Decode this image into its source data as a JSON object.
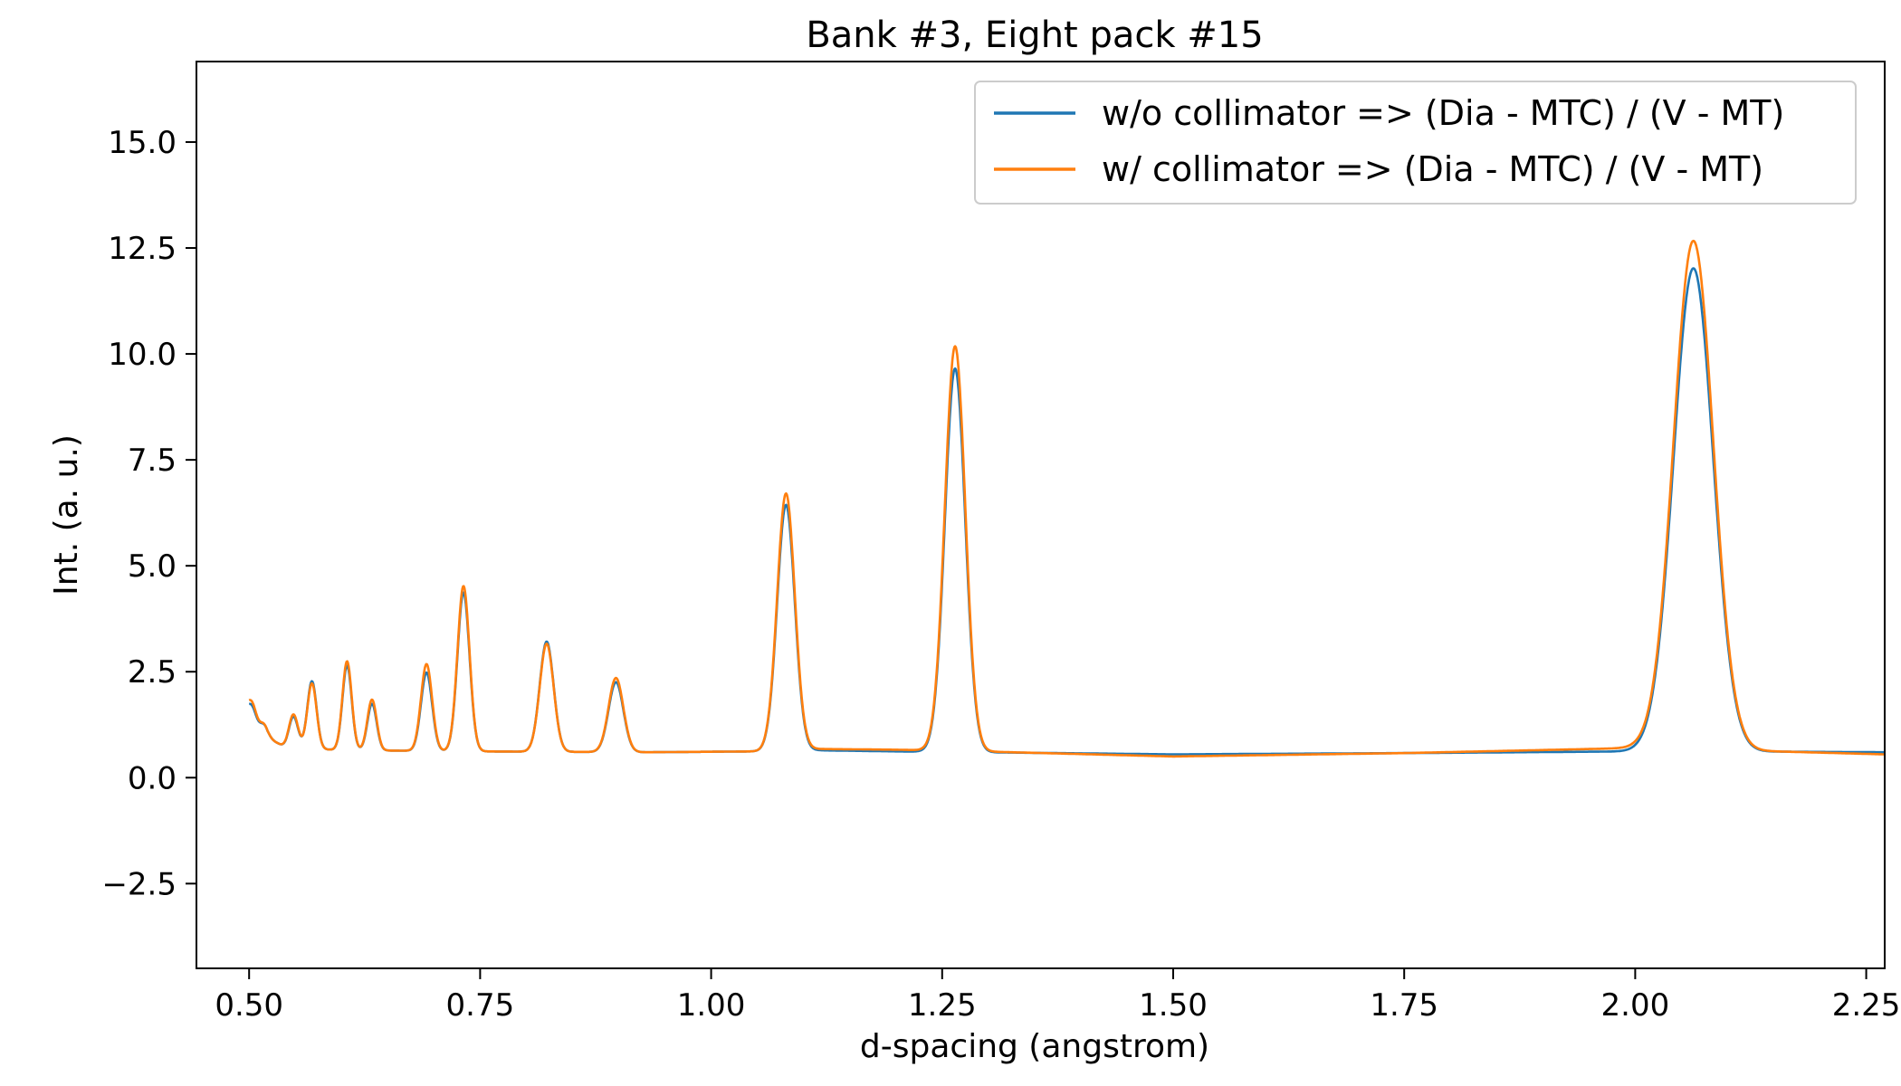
{
  "chart_data": {
    "type": "line",
    "title": "Bank #3, Eight pack #15",
    "xlabel": "d-spacing (angstrom)",
    "ylabel": "Int. (a. u.)",
    "xlim": [
      0.443,
      2.27
    ],
    "ylim": [
      -4.5,
      16.9
    ],
    "xticks": [
      0.5,
      0.75,
      1.0,
      1.25,
      1.5,
      1.75,
      2.0,
      2.25
    ],
    "xtick_labels": [
      "0.50",
      "0.75",
      "1.00",
      "1.25",
      "1.50",
      "1.75",
      "2.00",
      "2.25"
    ],
    "yticks": [
      -2.5,
      0,
      2.5,
      5,
      7.5,
      10,
      12.5,
      15
    ],
    "ytick_labels": [
      "−2.5",
      "0.0",
      "2.5",
      "5.0",
      "7.5",
      "10.0",
      "12.5",
      "15.0"
    ],
    "grid": false,
    "legend_position": "upper-right",
    "series": [
      {
        "name": "w/o collimator => (Dia - MTC) / (V - MT)",
        "color": "#1f77b4",
        "baseline": [
          [
            0.5,
            1.55
          ],
          [
            0.52,
            0.95
          ],
          [
            0.54,
            0.7
          ],
          [
            0.6,
            0.65
          ],
          [
            0.75,
            0.62
          ],
          [
            0.93,
            0.6
          ],
          [
            1.05,
            0.62
          ],
          [
            1.1,
            0.65
          ],
          [
            1.2,
            0.62
          ],
          [
            1.29,
            0.6
          ],
          [
            1.5,
            0.55
          ],
          [
            1.75,
            0.58
          ],
          [
            2.0,
            0.62
          ],
          [
            2.1,
            0.62
          ],
          [
            2.27,
            0.6
          ]
        ],
        "peaks": [
          [
            0.503,
            0.25,
            0.004
          ],
          [
            0.517,
            0.2,
            0.004
          ],
          [
            0.548,
            0.75,
            0.005
          ],
          [
            0.568,
            1.6,
            0.005
          ],
          [
            0.606,
            2.0,
            0.005
          ],
          [
            0.633,
            1.1,
            0.005
          ],
          [
            0.692,
            1.85,
            0.006
          ],
          [
            0.732,
            3.75,
            0.0065
          ],
          [
            0.822,
            2.6,
            0.0075
          ],
          [
            0.897,
            1.65,
            0.008
          ],
          [
            1.081,
            5.8,
            0.0095
          ],
          [
            1.264,
            9.05,
            0.011
          ],
          [
            2.063,
            11.4,
            0.0215
          ]
        ]
      },
      {
        "name": "w/ collimator => (Dia - MTC) / (V - MT)",
        "color": "#ff7f0e",
        "baseline": [
          [
            0.5,
            1.6
          ],
          [
            0.52,
            0.95
          ],
          [
            0.54,
            0.7
          ],
          [
            0.6,
            0.65
          ],
          [
            0.75,
            0.62
          ],
          [
            0.93,
            0.6
          ],
          [
            1.05,
            0.62
          ],
          [
            1.1,
            0.68
          ],
          [
            1.2,
            0.66
          ],
          [
            1.29,
            0.62
          ],
          [
            1.5,
            0.5
          ],
          [
            1.75,
            0.58
          ],
          [
            2.0,
            0.7
          ],
          [
            2.1,
            0.65
          ],
          [
            2.27,
            0.55
          ]
        ],
        "peaks": [
          [
            0.503,
            0.3,
            0.004
          ],
          [
            0.517,
            0.2,
            0.004
          ],
          [
            0.548,
            0.8,
            0.005
          ],
          [
            0.568,
            1.55,
            0.005
          ],
          [
            0.606,
            2.1,
            0.005
          ],
          [
            0.633,
            1.2,
            0.005
          ],
          [
            0.692,
            2.05,
            0.006
          ],
          [
            0.732,
            3.9,
            0.0065
          ],
          [
            0.822,
            2.55,
            0.0075
          ],
          [
            0.897,
            1.75,
            0.008
          ],
          [
            1.081,
            6.05,
            0.0095
          ],
          [
            1.264,
            9.55,
            0.011
          ],
          [
            2.063,
            12.0,
            0.0215
          ]
        ]
      }
    ]
  }
}
